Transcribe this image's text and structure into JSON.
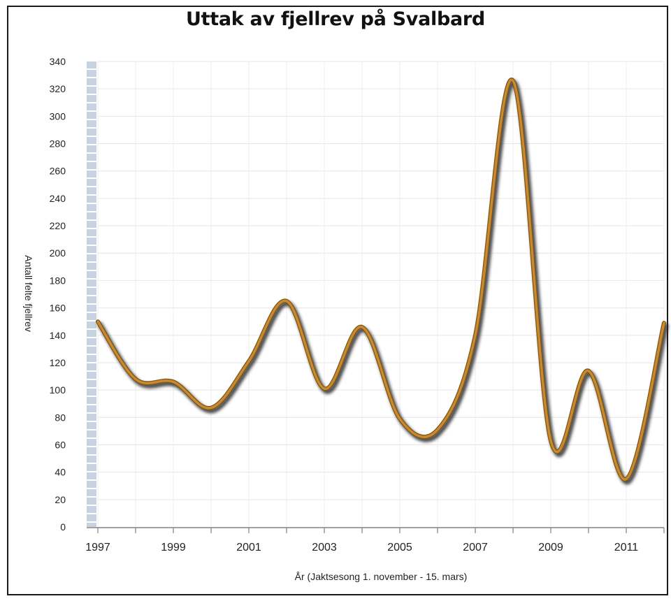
{
  "chart_data": {
    "type": "line",
    "title": "Uttak av fjellrev på Svalbard",
    "xlabel": "År (Jaktsesong 1. november - 15. mars)",
    "ylabel": "Antall felte fjellrev",
    "x": [
      1997,
      1998,
      1999,
      2000,
      2001,
      2002,
      2003,
      2004,
      2005,
      2006,
      2007,
      2008,
      2009,
      2010,
      2011,
      2012
    ],
    "series": [
      {
        "values": [
          150,
          108,
          106,
          87,
          121,
          165,
          101,
          146,
          79,
          71,
          140,
          326,
          63,
          114,
          35,
          149
        ]
      }
    ],
    "x_tick_labels": [
      "1997",
      "1999",
      "2001",
      "2003",
      "2005",
      "2007",
      "2009",
      "2011"
    ],
    "y_ticks": [
      0,
      20,
      40,
      60,
      80,
      100,
      120,
      140,
      160,
      180,
      200,
      220,
      240,
      260,
      280,
      300,
      320,
      340
    ],
    "xlim": [
      1997,
      2012
    ],
    "ylim": [
      0,
      340
    ],
    "grid": true,
    "line_color": "#c98a2e"
  }
}
